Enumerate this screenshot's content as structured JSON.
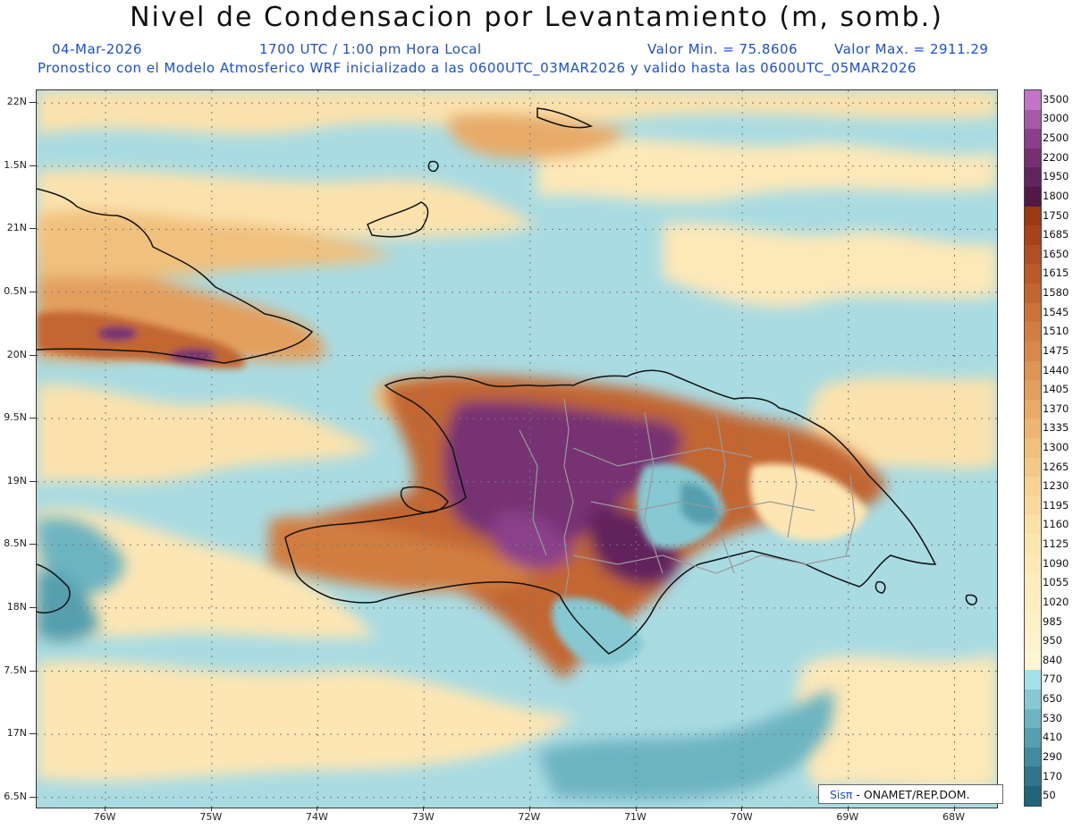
{
  "header": {
    "title": "Nivel de Condensacion por Levantamiento (m, somb.)",
    "date": "04-Mar-2026",
    "time": "1700 UTC / 1:00 pm Hora Local",
    "min_label": "Valor Min. = 75.8606",
    "max_label": "Valor Max. = 2911.29",
    "forecast": "Pronostico con el Modelo Atmosferico WRF inicializado a las 0600UTC_03MAR2026 y valido hasta las  0600UTC_05MAR2026"
  },
  "map": {
    "lat_labels": [
      "22N",
      "1.5N",
      "21N",
      "0.5N",
      "20N",
      "9.5N",
      "19N",
      "8.5N",
      "18N",
      "7.5N",
      "17N",
      "6.5N"
    ],
    "lon_labels": [
      "76W",
      "75W",
      "74W",
      "73W",
      "72W",
      "71W",
      "70W",
      "69W",
      "68W"
    ],
    "lat_values": [
      22,
      21.5,
      21,
      20.5,
      20,
      19.5,
      19,
      18.5,
      18,
      17.5,
      17,
      16.5
    ],
    "lon_values": [
      -76,
      -75,
      -74,
      -73,
      -72,
      -71,
      -70,
      -69,
      -68
    ],
    "extent": {
      "lon_min": -76.65,
      "lon_max": -67.6,
      "lat_min": 16.42,
      "lat_max": 22.1
    }
  },
  "colorbar": {
    "labels": [
      "3500",
      "3000",
      "2500",
      "2200",
      "1950",
      "1800",
      "1750",
      "1685",
      "1650",
      "1615",
      "1580",
      "1545",
      "1510",
      "1475",
      "1440",
      "1405",
      "1370",
      "1335",
      "1300",
      "1265",
      "1230",
      "1195",
      "1160",
      "1125",
      "1090",
      "1055",
      "1020",
      "985",
      "950",
      "840",
      "770",
      "650",
      "530",
      "410",
      "290",
      "170",
      "50"
    ],
    "colors": [
      "#c275c6",
      "#a45aa7",
      "#8a3f8a",
      "#763072",
      "#62245c",
      "#511a46",
      "#9a3a12",
      "#a6431a",
      "#b04f22",
      "#b95a29",
      "#c26631",
      "#cb7239",
      "#d27d41",
      "#d8884a",
      "#de9453",
      "#e39f5d",
      "#e8aa67",
      "#ecb572",
      "#f0c07d",
      "#f3c988",
      "#f6d293",
      "#f8da9e",
      "#fae1a8",
      "#fbe6b0",
      "#fce9b7",
      "#fdecbd",
      "#fdeec2",
      "#fef0c8",
      "#fff3cf",
      "#fff5d5",
      "#a4e0e8",
      "#87c9d3",
      "#6db4c1",
      "#559faf",
      "#418b9e",
      "#2f768b",
      "#1f6479"
    ]
  },
  "credit": {
    "brand": "Sisπ",
    "org": "- ONAMET/REP.DOM."
  }
}
